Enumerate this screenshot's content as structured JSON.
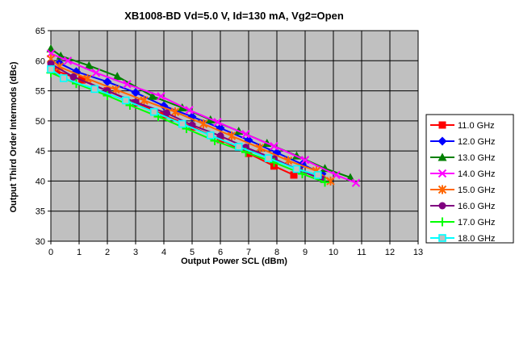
{
  "chart_data": {
    "type": "line",
    "title": "XB1008-BD Vd=5.0 V, Id=130 mA, Vg2=Open",
    "xlabel": "Output Power SCL (dBm)",
    "ylabel": "Output Third Order Intermods (dBc)",
    "xlim": [
      0,
      13
    ],
    "ylim": [
      30,
      65
    ],
    "xticks": [
      "0",
      "1",
      "2",
      "3",
      "4",
      "5",
      "6",
      "7",
      "8",
      "9",
      "10",
      "11",
      "12",
      "13"
    ],
    "yticks": [
      "30",
      "35",
      "40",
      "45",
      "50",
      "55",
      "60",
      "65"
    ],
    "grid": true,
    "legend_position": "right",
    "series": [
      {
        "name": "11.0 GHz",
        "color": "#ff0000",
        "marker": "square",
        "points": [
          [
            0.2,
            58.3
          ],
          [
            1.1,
            56.8
          ],
          [
            2.0,
            55.0
          ],
          [
            3.0,
            53.0
          ],
          [
            4.0,
            51.0
          ],
          [
            5.0,
            49.0
          ],
          [
            6.0,
            46.9
          ],
          [
            7.0,
            44.6
          ],
          [
            7.9,
            42.5
          ],
          [
            8.6,
            41.0
          ]
        ]
      },
      {
        "name": "12.0 GHz",
        "color": "#0000ff",
        "marker": "diamond",
        "points": [
          [
            0.3,
            59.6
          ],
          [
            0.9,
            58.2
          ],
          [
            2.0,
            56.5
          ],
          [
            3.0,
            54.7
          ],
          [
            4.0,
            52.5
          ],
          [
            5.0,
            50.7
          ],
          [
            6.0,
            48.8
          ],
          [
            7.0,
            46.8
          ],
          [
            8.0,
            44.7
          ],
          [
            8.9,
            42.8
          ],
          [
            9.6,
            41.2
          ]
        ]
      },
      {
        "name": "13.0 GHz",
        "color": "#008000",
        "marker": "triangle",
        "points": [
          [
            0,
            62.0
          ],
          [
            0.35,
            60.8
          ],
          [
            1.35,
            59.2
          ],
          [
            2.35,
            57.4
          ],
          [
            3.6,
            54.1
          ],
          [
            4.65,
            52.2
          ],
          [
            5.65,
            50.2
          ],
          [
            6.65,
            48.3
          ],
          [
            7.65,
            46.3
          ],
          [
            8.7,
            44.2
          ],
          [
            9.7,
            42.1
          ],
          [
            10.6,
            40.6
          ]
        ]
      },
      {
        "name": "14.0 GHz",
        "color": "#ff00ff",
        "marker": "x",
        "points": [
          [
            0,
            61.2
          ],
          [
            0.6,
            60.0
          ],
          [
            1.6,
            58.0
          ],
          [
            2.7,
            56.1
          ],
          [
            3.9,
            54.1
          ],
          [
            4.9,
            51.8
          ],
          [
            5.9,
            49.8
          ],
          [
            6.9,
            47.8
          ],
          [
            7.9,
            45.8
          ],
          [
            9.0,
            43.5
          ],
          [
            10.1,
            41.0
          ],
          [
            10.8,
            39.7
          ]
        ]
      },
      {
        "name": "15.0 GHz",
        "color": "#ff6600",
        "marker": "star",
        "points": [
          [
            0,
            60.3
          ],
          [
            0.3,
            59.0
          ],
          [
            1.3,
            57.0
          ],
          [
            2.3,
            55.2
          ],
          [
            3.3,
            53.4
          ],
          [
            4.4,
            51.5
          ],
          [
            5.4,
            49.5
          ],
          [
            6.4,
            47.5
          ],
          [
            7.4,
            45.5
          ],
          [
            8.4,
            43.4
          ],
          [
            9.4,
            41.7
          ],
          [
            9.9,
            40.0
          ]
        ]
      },
      {
        "name": "16.0 GHz",
        "color": "#800080",
        "marker": "circle",
        "points": [
          [
            0,
            59.5
          ],
          [
            0.8,
            57.3
          ],
          [
            2.0,
            55.0
          ],
          [
            3.0,
            53.1
          ],
          [
            4.1,
            51.3
          ],
          [
            5.0,
            49.3
          ],
          [
            6.0,
            47.5
          ],
          [
            6.9,
            45.6
          ],
          [
            7.9,
            43.7
          ],
          [
            8.8,
            41.8
          ],
          [
            9.6,
            40.3
          ]
        ]
      },
      {
        "name": "17.0 GHz",
        "color": "#00ff00",
        "marker": "plus",
        "points": [
          [
            0,
            58.0
          ],
          [
            0.9,
            56.2
          ],
          [
            2.0,
            54.2
          ],
          [
            2.8,
            52.6
          ],
          [
            3.8,
            50.7
          ],
          [
            4.8,
            48.7
          ],
          [
            5.8,
            46.7
          ],
          [
            6.9,
            44.8
          ],
          [
            7.9,
            43.1
          ],
          [
            8.9,
            41.2
          ],
          [
            9.7,
            39.8
          ]
        ]
      },
      {
        "name": "18.0 GHz",
        "color": "#00ffff",
        "marker": "open-square",
        "points": [
          [
            0,
            58.6
          ],
          [
            0.45,
            57.1
          ],
          [
            1.55,
            55.3
          ],
          [
            2.65,
            53.4
          ],
          [
            3.65,
            51.5
          ],
          [
            4.65,
            49.5
          ],
          [
            5.65,
            47.6
          ],
          [
            6.65,
            45.7
          ],
          [
            7.7,
            43.8
          ],
          [
            8.7,
            42.0
          ],
          [
            9.45,
            41.0
          ]
        ]
      }
    ]
  }
}
